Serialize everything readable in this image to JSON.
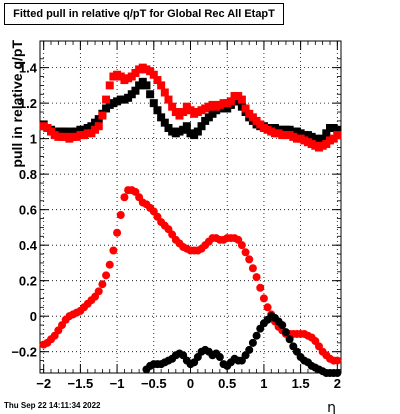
{
  "title": "Fitted pull in relative q/pT for Global Rec All EtapT",
  "footer": "Thu Sep 22 14:11:34 2022",
  "chart_data": {
    "type": "scatter",
    "title": "Fitted pull in relative q/pT for Global Rec All EtapT",
    "xlabel": "η",
    "ylabel": "pull in relative q/pT",
    "xlim": [
      -2.05,
      2.05
    ],
    "ylim": [
      -0.32,
      1.55
    ],
    "grid": true,
    "x_ticks": [
      -2,
      -1.5,
      -1,
      -0.5,
      0,
      0.5,
      1,
      1.5,
      2
    ],
    "x_tick_labels": [
      "−2",
      "−1.5",
      "−1",
      "−0.5",
      "0",
      "0.5",
      "1",
      "1.5",
      "2"
    ],
    "y_ticks": [
      -0.2,
      0,
      0.2,
      0.4,
      0.6,
      0.8,
      1.0,
      1.2,
      1.4
    ],
    "y_tick_labels": [
      "−0.2",
      "0",
      "0.2",
      "0.4",
      "0.6",
      "0.8",
      "1",
      "1.2",
      "1.4"
    ],
    "colors": {
      "red": "#ff0000",
      "black": "#000000"
    },
    "series": [
      {
        "marker": "square",
        "color": "#000000",
        "x": [
          -2.0,
          -1.95,
          -1.9,
          -1.85,
          -1.8,
          -1.75,
          -1.7,
          -1.65,
          -1.6,
          -1.55,
          -1.5,
          -1.45,
          -1.4,
          -1.35,
          -1.3,
          -1.25,
          -1.2,
          -1.15,
          -1.1,
          -1.05,
          -1.0,
          -0.95,
          -0.9,
          -0.85,
          -0.8,
          -0.75,
          -0.7,
          -0.65,
          -0.6,
          -0.55,
          -0.5,
          -0.45,
          -0.4,
          -0.35,
          -0.3,
          -0.25,
          -0.2,
          -0.15,
          -0.1,
          -0.05,
          0.0,
          0.05,
          0.1,
          0.15,
          0.2,
          0.25,
          0.3,
          0.35,
          0.4,
          0.45,
          0.5,
          0.55,
          0.6,
          0.65,
          0.7,
          0.75,
          0.8,
          0.85,
          0.9,
          0.95,
          1.0,
          1.05,
          1.1,
          1.15,
          1.2,
          1.25,
          1.3,
          1.35,
          1.4,
          1.45,
          1.5,
          1.55,
          1.6,
          1.65,
          1.7,
          1.75,
          1.8,
          1.85,
          1.9,
          1.95,
          2.0
        ],
        "y": [
          1.08,
          1.06,
          1.05,
          1.04,
          1.04,
          1.04,
          1.04,
          1.03,
          1.04,
          1.04,
          1.05,
          1.05,
          1.06,
          1.07,
          1.09,
          1.11,
          1.14,
          1.17,
          1.19,
          1.2,
          1.21,
          1.22,
          1.22,
          1.23,
          1.25,
          1.27,
          1.3,
          1.32,
          1.3,
          1.25,
          1.2,
          1.16,
          1.12,
          1.09,
          1.06,
          1.04,
          1.03,
          1.04,
          1.05,
          1.07,
          1.03,
          1.02,
          1.04,
          1.07,
          1.1,
          1.12,
          1.14,
          1.16,
          1.17,
          1.18,
          1.17,
          1.19,
          1.21,
          1.21,
          1.18,
          1.15,
          1.12,
          1.1,
          1.08,
          1.07,
          1.07,
          1.06,
          1.06,
          1.06,
          1.05,
          1.05,
          1.05,
          1.05,
          1.04,
          1.04,
          1.03,
          1.02,
          1.02,
          1.01,
          1.0,
          0.99,
          1.0,
          1.03,
          1.06,
          1.06,
          1.05
        ]
      },
      {
        "marker": "square",
        "color": "#ff0000",
        "x": [
          -2.0,
          -1.95,
          -1.9,
          -1.85,
          -1.8,
          -1.75,
          -1.7,
          -1.65,
          -1.6,
          -1.55,
          -1.5,
          -1.45,
          -1.4,
          -1.35,
          -1.3,
          -1.25,
          -1.2,
          -1.15,
          -1.1,
          -1.05,
          -1.0,
          -0.95,
          -0.9,
          -0.85,
          -0.8,
          -0.75,
          -0.7,
          -0.65,
          -0.6,
          -0.55,
          -0.5,
          -0.45,
          -0.4,
          -0.35,
          -0.3,
          -0.25,
          -0.2,
          -0.15,
          -0.1,
          -0.05,
          0.0,
          0.05,
          0.1,
          0.15,
          0.2,
          0.25,
          0.3,
          0.35,
          0.4,
          0.45,
          0.5,
          0.55,
          0.6,
          0.65,
          0.7,
          0.75,
          0.8,
          0.85,
          0.9,
          0.95,
          1.0,
          1.05,
          1.1,
          1.15,
          1.2,
          1.25,
          1.3,
          1.35,
          1.4,
          1.45,
          1.5,
          1.55,
          1.6,
          1.65,
          1.7,
          1.75,
          1.8,
          1.85,
          1.9,
          1.95,
          2.0
        ],
        "y": [
          1.07,
          1.06,
          1.04,
          1.02,
          1.01,
          1.01,
          1.01,
          1.0,
          1.01,
          1.01,
          1.02,
          1.02,
          1.03,
          1.03,
          1.05,
          1.07,
          1.13,
          1.22,
          1.3,
          1.35,
          1.36,
          1.35,
          1.33,
          1.34,
          1.35,
          1.37,
          1.39,
          1.4,
          1.39,
          1.38,
          1.36,
          1.33,
          1.3,
          1.26,
          1.22,
          1.18,
          1.15,
          1.13,
          1.15,
          1.18,
          1.16,
          1.14,
          1.15,
          1.16,
          1.17,
          1.18,
          1.19,
          1.18,
          1.19,
          1.2,
          1.2,
          1.21,
          1.24,
          1.24,
          1.22,
          1.17,
          1.14,
          1.12,
          1.1,
          1.08,
          1.06,
          1.05,
          1.04,
          1.03,
          1.03,
          1.02,
          1.02,
          1.02,
          1.01,
          1.0,
          1.0,
          0.99,
          0.98,
          0.97,
          0.96,
          0.95,
          0.96,
          0.97,
          0.99,
          1.0,
          1.02
        ]
      },
      {
        "marker": "circle",
        "color": "#ff0000",
        "x": [
          -2.0,
          -1.95,
          -1.9,
          -1.85,
          -1.8,
          -1.75,
          -1.7,
          -1.65,
          -1.6,
          -1.55,
          -1.5,
          -1.45,
          -1.4,
          -1.35,
          -1.3,
          -1.25,
          -1.2,
          -1.15,
          -1.1,
          -1.05,
          -1.0,
          -0.95,
          -0.9,
          -0.85,
          -0.8,
          -0.75,
          -0.7,
          -0.65,
          -0.6,
          -0.55,
          -0.5,
          -0.45,
          -0.4,
          -0.35,
          -0.3,
          -0.25,
          -0.2,
          -0.15,
          -0.1,
          -0.05,
          0.0,
          0.05,
          0.1,
          0.15,
          0.2,
          0.25,
          0.3,
          0.35,
          0.4,
          0.45,
          0.5,
          0.55,
          0.6,
          0.65,
          0.7,
          0.75,
          0.8,
          0.85,
          0.9,
          0.95,
          1.0,
          1.05,
          1.1,
          1.15,
          1.2,
          1.25,
          1.3,
          1.35,
          1.4,
          1.45,
          1.5,
          1.55,
          1.6,
          1.65,
          1.7,
          1.75,
          1.8,
          1.85,
          1.9,
          1.95,
          2.0
        ],
        "y": [
          -0.16,
          -0.15,
          -0.13,
          -0.11,
          -0.08,
          -0.05,
          -0.02,
          0.0,
          0.01,
          0.02,
          0.03,
          0.05,
          0.07,
          0.09,
          0.11,
          0.14,
          0.18,
          0.23,
          0.29,
          0.37,
          0.47,
          0.57,
          0.67,
          0.71,
          0.71,
          0.7,
          0.67,
          0.64,
          0.63,
          0.61,
          0.59,
          0.56,
          0.53,
          0.51,
          0.49,
          0.46,
          0.43,
          0.41,
          0.39,
          0.38,
          0.37,
          0.37,
          0.37,
          0.38,
          0.4,
          0.42,
          0.44,
          0.44,
          0.43,
          0.43,
          0.44,
          0.44,
          0.44,
          0.43,
          0.4,
          0.36,
          0.32,
          0.27,
          0.22,
          0.16,
          0.1,
          0.05,
          0.01,
          -0.03,
          -0.06,
          -0.08,
          -0.1,
          -0.1,
          -0.1,
          -0.1,
          -0.1,
          -0.1,
          -0.11,
          -0.12,
          -0.14,
          -0.17,
          -0.2,
          -0.22,
          -0.24,
          -0.25,
          -0.25
        ]
      },
      {
        "marker": "circle",
        "color": "#000000",
        "x": [
          -0.6,
          -0.55,
          -0.5,
          -0.45,
          -0.4,
          -0.35,
          -0.3,
          -0.25,
          -0.2,
          -0.15,
          -0.1,
          -0.05,
          0.0,
          0.05,
          0.1,
          0.15,
          0.2,
          0.25,
          0.3,
          0.35,
          0.4,
          0.45,
          0.5,
          0.55,
          0.6,
          0.65,
          0.7,
          0.75,
          0.8,
          0.85,
          0.9,
          0.95,
          1.0,
          1.05,
          1.1,
          1.15,
          1.2,
          1.25,
          1.3,
          1.35,
          1.4,
          1.45,
          1.5,
          1.55,
          1.6,
          1.65,
          1.7,
          1.75,
          1.8,
          1.85,
          1.9,
          1.95,
          2.0
        ],
        "y": [
          -0.3,
          -0.28,
          -0.27,
          -0.27,
          -0.27,
          -0.26,
          -0.25,
          -0.24,
          -0.22,
          -0.21,
          -0.22,
          -0.25,
          -0.27,
          -0.26,
          -0.23,
          -0.2,
          -0.19,
          -0.2,
          -0.22,
          -0.21,
          -0.23,
          -0.27,
          -0.28,
          -0.26,
          -0.24,
          -0.25,
          -0.25,
          -0.22,
          -0.19,
          -0.15,
          -0.11,
          -0.07,
          -0.04,
          -0.02,
          0.0,
          -0.01,
          -0.03,
          -0.05,
          -0.09,
          -0.13,
          -0.17,
          -0.2,
          -0.23,
          -0.25,
          -0.26,
          -0.28,
          -0.29,
          -0.3,
          -0.31,
          -0.32,
          -0.32,
          -0.32,
          -0.32
        ]
      }
    ]
  }
}
